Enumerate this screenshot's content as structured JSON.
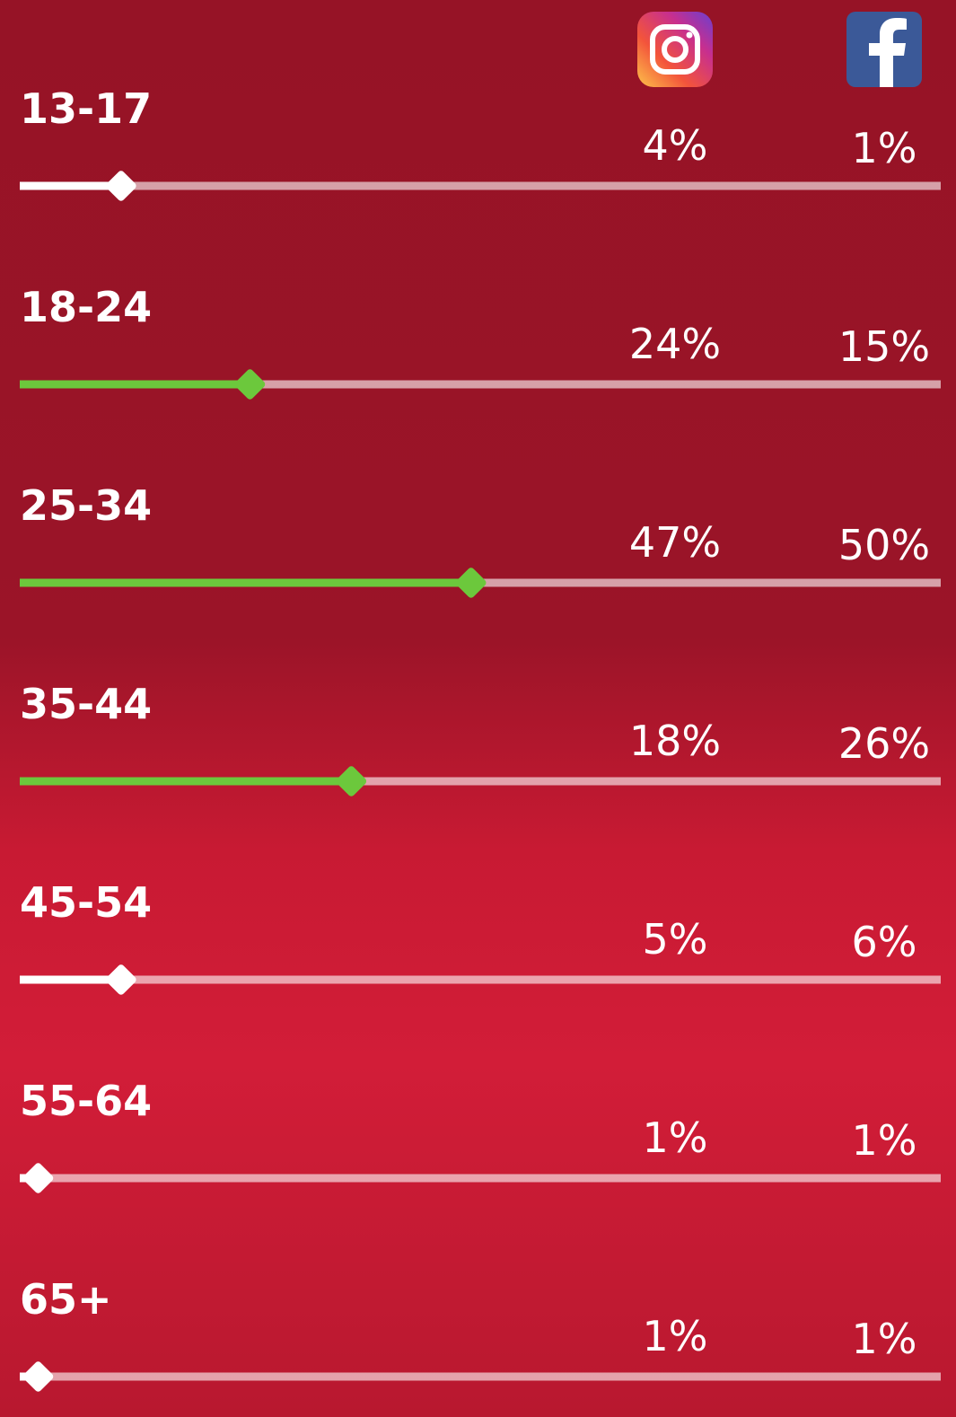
{
  "slider_range": [
    0,
    100
  ],
  "rows": [
    {
      "label": "13-17",
      "instagram": "4%",
      "facebook": "1%",
      "slider": 11,
      "color": "#ffffff"
    },
    {
      "label": "18-24",
      "instagram": "24%",
      "facebook": "15%",
      "slider": 25,
      "color": "#6cc83c"
    },
    {
      "label": "25-34",
      "instagram": "47%",
      "facebook": "50%",
      "slider": 49,
      "color": "#6cc83c"
    },
    {
      "label": "35-44",
      "instagram": "18%",
      "facebook": "26%",
      "slider": 36,
      "color": "#6cc83c"
    },
    {
      "label": "45-54",
      "instagram": "5%",
      "facebook": "6%",
      "slider": 11,
      "color": "#ffffff"
    },
    {
      "label": "55-64",
      "instagram": "1%",
      "facebook": "1%",
      "slider": 2,
      "color": "#ffffff"
    },
    {
      "label": "65+",
      "instagram": "1%",
      "facebook": "1%",
      "slider": 2,
      "color": "#ffffff"
    }
  ]
}
